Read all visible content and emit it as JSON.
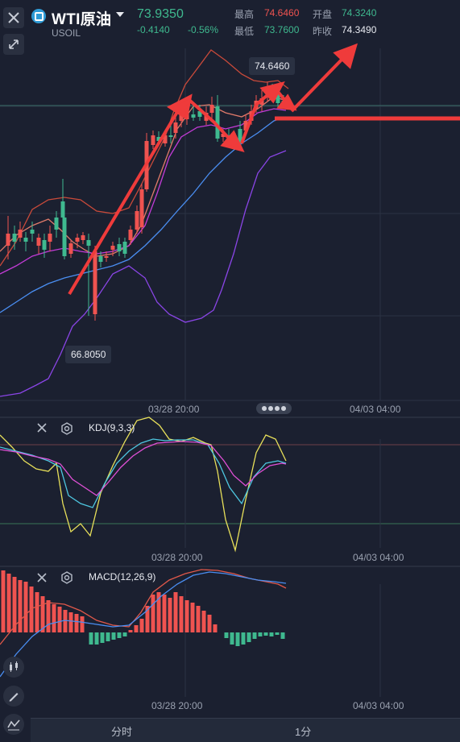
{
  "header": {
    "symbol": "WTI原油",
    "subtitle": "USOIL",
    "last_price": "73.9350",
    "change": "-0.4140",
    "change_pct": "-0.56%",
    "stats": [
      {
        "label": "最高",
        "value": "74.6460",
        "color": "#ef5350"
      },
      {
        "label": "开盘",
        "value": "74.3240",
        "color": "#3fb98f"
      },
      {
        "label": "最低",
        "value": "73.7600",
        "color": "#3fb98f"
      },
      {
        "label": "昨收",
        "value": "74.3490",
        "color": "#e8eaf0"
      }
    ]
  },
  "main_chart": {
    "high_tag": "74.6460",
    "low_tag": "66.8050",
    "time_labels": [
      "03/28 20:00",
      "04/03 04:00"
    ]
  },
  "kdj_panel": {
    "title": "KDJ(9,3,3)",
    "time_labels": [
      "03/28 20:00",
      "04/03 04:00"
    ]
  },
  "macd_panel": {
    "title": "MACD(12,26,9)",
    "time_labels": [
      "03/28 20:00",
      "04/03 04:00"
    ]
  },
  "footer": {
    "tabs": [
      "分时",
      "1分"
    ]
  },
  "icons": {
    "close": "close-icon",
    "collapse": "collapse-icon",
    "settings": "settings-icon"
  },
  "colors": {
    "up": "#ef5350",
    "down": "#3fb98f",
    "background": "#1b2030"
  }
}
